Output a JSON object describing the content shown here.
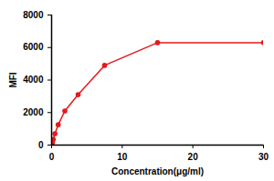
{
  "chart_data": {
    "type": "line",
    "x_label": "Concentration(μg/ml)",
    "y_label": "MFI",
    "x": [
      0.0586,
      0.117,
      0.234,
      0.469,
      0.9375,
      1.875,
      3.75,
      7.5,
      15,
      30
    ],
    "values": [
      60,
      150,
      350,
      700,
      1250,
      2100,
      3100,
      4900,
      6300,
      6300
    ],
    "color": "#e41a1c",
    "marker": "circle",
    "xlim": [
      0,
      30
    ],
    "ylim": [
      0,
      8000
    ],
    "xticks": [
      0,
      10,
      20,
      30
    ],
    "yticks": [
      0,
      2000,
      4000,
      6000,
      8000
    ],
    "grid": false
  }
}
